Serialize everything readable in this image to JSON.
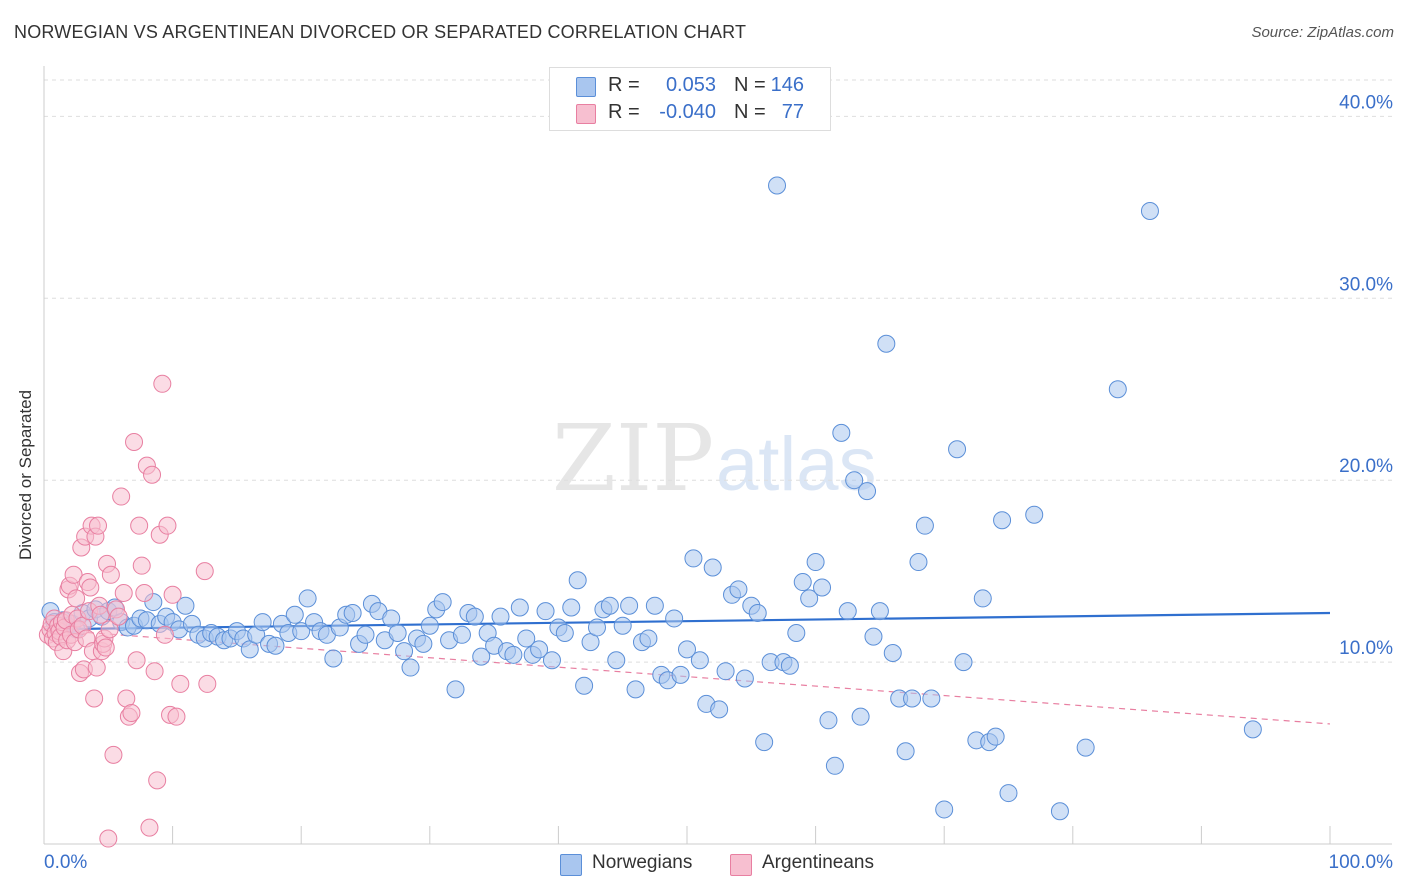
{
  "header": {
    "title": "NORWEGIAN VS ARGENTINEAN DIVORCED OR SEPARATED CORRELATION CHART",
    "source": "Source: ZipAtlas.com"
  },
  "watermark": {
    "zip": "ZIP",
    "atlas": "atlas"
  },
  "legend_top": {
    "rows": [
      {
        "r_label": "R =",
        "r_value": "0.053",
        "n_label": "N =",
        "n_value": "146",
        "color": "#a9c6ef",
        "border": "#5b8fd8"
      },
      {
        "r_label": "R =",
        "r_value": "-0.040",
        "n_label": "N =",
        "n_value": "77",
        "color": "#f7bfd0",
        "border": "#e87fa1"
      }
    ]
  },
  "legend_bottom": {
    "items": [
      {
        "label": "Norwegians",
        "color": "#a9c6ef",
        "border": "#5b8fd8"
      },
      {
        "label": "Argentineans",
        "color": "#f7bfd0",
        "border": "#e87fa1"
      }
    ]
  },
  "chart_data": {
    "type": "scatter",
    "title": "NORWEGIAN VS ARGENTINEAN DIVORCED OR SEPARATED CORRELATION CHART",
    "xlabel": "",
    "ylabel": "Divorced or Separated",
    "xlim": [
      0,
      100
    ],
    "ylim": [
      0,
      42
    ],
    "x_tick_labels": {
      "min": "0.0%",
      "max": "100.0%"
    },
    "y_ticks": [
      10,
      20,
      30,
      40
    ],
    "y_tick_labels": [
      "10.0%",
      "20.0%",
      "30.0%",
      "40.0%"
    ],
    "grid": true,
    "legend_position": "top-center",
    "series": [
      {
        "name": "Norwegians",
        "color": "#a9c6ef",
        "stroke": "#5b8fd8",
        "trend": {
          "x": [
            0,
            100
          ],
          "y": [
            11.8,
            12.7
          ],
          "color": "#2f6fcf",
          "style": "solid"
        },
        "points": [
          [
            0.5,
            12.8
          ],
          [
            0.8,
            12.2
          ],
          [
            1.0,
            12.0
          ],
          [
            1.2,
            11.7
          ],
          [
            1.5,
            12.3
          ],
          [
            1.8,
            12.0
          ],
          [
            2.2,
            12.1
          ],
          [
            2.5,
            11.8
          ],
          [
            3.0,
            12.7
          ],
          [
            3.5,
            12.4
          ],
          [
            4.0,
            12.9
          ],
          [
            4.5,
            12.5
          ],
          [
            5.0,
            12.8
          ],
          [
            5.5,
            13.0
          ],
          [
            6.0,
            12.2
          ],
          [
            6.5,
            11.9
          ],
          [
            7.0,
            12.0
          ],
          [
            7.5,
            12.4
          ],
          [
            8.0,
            12.3
          ],
          [
            8.5,
            13.3
          ],
          [
            9.0,
            12.1
          ],
          [
            9.5,
            12.5
          ],
          [
            10.0,
            12.2
          ],
          [
            10.5,
            11.8
          ],
          [
            11.0,
            13.1
          ],
          [
            11.5,
            12.1
          ],
          [
            12.0,
            11.5
          ],
          [
            12.5,
            11.3
          ],
          [
            13.0,
            11.6
          ],
          [
            13.5,
            11.4
          ],
          [
            14.0,
            11.2
          ],
          [
            14.5,
            11.3
          ],
          [
            15.0,
            11.7
          ],
          [
            15.5,
            11.3
          ],
          [
            16.0,
            10.7
          ],
          [
            16.5,
            11.5
          ],
          [
            17.0,
            12.2
          ],
          [
            17.5,
            11.0
          ],
          [
            18.0,
            10.9
          ],
          [
            18.5,
            12.1
          ],
          [
            19.0,
            11.6
          ],
          [
            19.5,
            12.6
          ],
          [
            20.0,
            11.7
          ],
          [
            20.5,
            13.5
          ],
          [
            21.0,
            12.2
          ],
          [
            21.5,
            11.7
          ],
          [
            22.0,
            11.5
          ],
          [
            22.5,
            10.2
          ],
          [
            23.0,
            11.9
          ],
          [
            23.5,
            12.6
          ],
          [
            24.0,
            12.7
          ],
          [
            24.5,
            11.0
          ],
          [
            25.0,
            11.5
          ],
          [
            25.5,
            13.2
          ],
          [
            26.0,
            12.8
          ],
          [
            26.5,
            11.2
          ],
          [
            27.0,
            12.4
          ],
          [
            27.5,
            11.6
          ],
          [
            28.0,
            10.6
          ],
          [
            28.5,
            9.7
          ],
          [
            29.0,
            11.3
          ],
          [
            29.5,
            11.0
          ],
          [
            30.0,
            12.0
          ],
          [
            30.5,
            12.9
          ],
          [
            31.0,
            13.3
          ],
          [
            31.5,
            11.2
          ],
          [
            32.0,
            8.5
          ],
          [
            32.5,
            11.5
          ],
          [
            33.0,
            12.7
          ],
          [
            33.5,
            12.5
          ],
          [
            34.0,
            10.3
          ],
          [
            34.5,
            11.6
          ],
          [
            35.0,
            10.9
          ],
          [
            35.5,
            12.5
          ],
          [
            36.0,
            10.6
          ],
          [
            36.5,
            10.4
          ],
          [
            37.0,
            13.0
          ],
          [
            37.5,
            11.3
          ],
          [
            38.0,
            10.4
          ],
          [
            38.5,
            10.7
          ],
          [
            39.0,
            12.8
          ],
          [
            39.5,
            10.1
          ],
          [
            40.0,
            11.9
          ],
          [
            40.5,
            11.6
          ],
          [
            41.0,
            13.0
          ],
          [
            41.5,
            14.5
          ],
          [
            42.0,
            8.7
          ],
          [
            42.5,
            11.1
          ],
          [
            43.0,
            11.9
          ],
          [
            43.5,
            12.9
          ],
          [
            44.0,
            13.1
          ],
          [
            44.5,
            10.1
          ],
          [
            45.0,
            12.0
          ],
          [
            45.5,
            13.1
          ],
          [
            46.0,
            8.5
          ],
          [
            46.5,
            11.1
          ],
          [
            47.0,
            11.3
          ],
          [
            47.5,
            13.1
          ],
          [
            48.0,
            9.3
          ],
          [
            48.5,
            9.0
          ],
          [
            49.0,
            12.4
          ],
          [
            49.5,
            9.3
          ],
          [
            50.0,
            10.7
          ],
          [
            50.5,
            15.7
          ],
          [
            51.0,
            10.1
          ],
          [
            51.5,
            7.7
          ],
          [
            52.0,
            15.2
          ],
          [
            52.5,
            7.4
          ],
          [
            53.0,
            9.5
          ],
          [
            53.5,
            13.7
          ],
          [
            54.0,
            14.0
          ],
          [
            54.5,
            9.1
          ],
          [
            55.0,
            13.1
          ],
          [
            55.5,
            12.7
          ],
          [
            56.0,
            5.6
          ],
          [
            56.5,
            10.0
          ],
          [
            57.0,
            36.2
          ],
          [
            57.5,
            10.0
          ],
          [
            58.0,
            9.8
          ],
          [
            58.5,
            11.6
          ],
          [
            59.0,
            14.4
          ],
          [
            59.5,
            13.5
          ],
          [
            60.0,
            15.5
          ],
          [
            60.5,
            14.1
          ],
          [
            61.0,
            6.8
          ],
          [
            61.5,
            4.3
          ],
          [
            62.0,
            22.6
          ],
          [
            62.5,
            12.8
          ],
          [
            63.0,
            20.0
          ],
          [
            63.5,
            7.0
          ],
          [
            64.0,
            19.4
          ],
          [
            64.5,
            11.4
          ],
          [
            65.0,
            12.8
          ],
          [
            65.5,
            27.5
          ],
          [
            66.0,
            10.5
          ],
          [
            66.5,
            8.0
          ],
          [
            67.0,
            5.1
          ],
          [
            67.5,
            8.0
          ],
          [
            68.0,
            15.5
          ],
          [
            68.5,
            17.5
          ],
          [
            69.0,
            8.0
          ],
          [
            70.0,
            1.9
          ],
          [
            71.0,
            21.7
          ],
          [
            71.5,
            10.0
          ],
          [
            72.5,
            5.7
          ],
          [
            73.0,
            13.5
          ],
          [
            73.5,
            5.6
          ],
          [
            74.0,
            5.9
          ],
          [
            74.5,
            17.8
          ],
          [
            75.0,
            2.8
          ],
          [
            77.0,
            18.1
          ],
          [
            79.0,
            1.8
          ],
          [
            81.0,
            5.3
          ],
          [
            83.5,
            25.0
          ],
          [
            86.0,
            34.8
          ],
          [
            94.0,
            6.3
          ]
        ]
      },
      {
        "name": "Argentineans",
        "color": "#f7bfd0",
        "stroke": "#e87fa1",
        "trend": {
          "x": [
            0,
            100
          ],
          "y": [
            11.8,
            6.6
          ],
          "color": "#e87fa1",
          "style": "dashed"
        },
        "points": [
          [
            0.3,
            11.5
          ],
          [
            0.5,
            11.8
          ],
          [
            0.6,
            12.1
          ],
          [
            0.7,
            11.3
          ],
          [
            0.8,
            12.4
          ],
          [
            0.9,
            11.6
          ],
          [
            1.0,
            11.1
          ],
          [
            1.1,
            12.0
          ],
          [
            1.2,
            11.7
          ],
          [
            1.3,
            11.4
          ],
          [
            1.4,
            12.2
          ],
          [
            1.5,
            10.6
          ],
          [
            1.6,
            11.9
          ],
          [
            1.7,
            12.3
          ],
          [
            1.8,
            11.2
          ],
          [
            1.9,
            14.0
          ],
          [
            2.0,
            14.2
          ],
          [
            2.1,
            11.5
          ],
          [
            2.2,
            12.6
          ],
          [
            2.3,
            14.8
          ],
          [
            2.4,
            11.1
          ],
          [
            2.5,
            13.5
          ],
          [
            2.6,
            12.4
          ],
          [
            2.7,
            11.8
          ],
          [
            2.8,
            9.4
          ],
          [
            2.9,
            16.3
          ],
          [
            3.0,
            12.0
          ],
          [
            3.1,
            9.6
          ],
          [
            3.2,
            16.9
          ],
          [
            3.3,
            11.3
          ],
          [
            3.4,
            14.4
          ],
          [
            3.5,
            12.8
          ],
          [
            3.6,
            14.1
          ],
          [
            3.7,
            17.5
          ],
          [
            3.8,
            10.6
          ],
          [
            3.9,
            8.0
          ],
          [
            4.0,
            16.9
          ],
          [
            4.1,
            9.7
          ],
          [
            4.2,
            17.5
          ],
          [
            4.3,
            13.1
          ],
          [
            4.4,
            12.6
          ],
          [
            4.5,
            10.6
          ],
          [
            4.6,
            11.0
          ],
          [
            4.7,
            11.3
          ],
          [
            4.8,
            10.8
          ],
          [
            4.9,
            15.4
          ],
          [
            5.0,
            0.3
          ],
          [
            5.1,
            11.8
          ],
          [
            5.2,
            14.8
          ],
          [
            5.4,
            4.9
          ],
          [
            5.6,
            12.9
          ],
          [
            5.8,
            12.5
          ],
          [
            6.0,
            19.1
          ],
          [
            6.2,
            13.8
          ],
          [
            6.4,
            8.0
          ],
          [
            6.6,
            7.0
          ],
          [
            6.8,
            7.2
          ],
          [
            7.0,
            22.1
          ],
          [
            7.2,
            10.1
          ],
          [
            7.4,
            17.5
          ],
          [
            7.6,
            15.3
          ],
          [
            7.8,
            13.8
          ],
          [
            8.0,
            20.8
          ],
          [
            8.2,
            0.9
          ],
          [
            8.4,
            20.3
          ],
          [
            8.6,
            9.5
          ],
          [
            8.8,
            3.5
          ],
          [
            9.0,
            17.0
          ],
          [
            9.2,
            25.3
          ],
          [
            9.4,
            11.5
          ],
          [
            9.6,
            17.5
          ],
          [
            9.8,
            7.1
          ],
          [
            10.0,
            13.7
          ],
          [
            10.3,
            7.0
          ],
          [
            10.6,
            8.8
          ],
          [
            12.5,
            15.0
          ],
          [
            12.7,
            8.8
          ]
        ]
      }
    ]
  }
}
